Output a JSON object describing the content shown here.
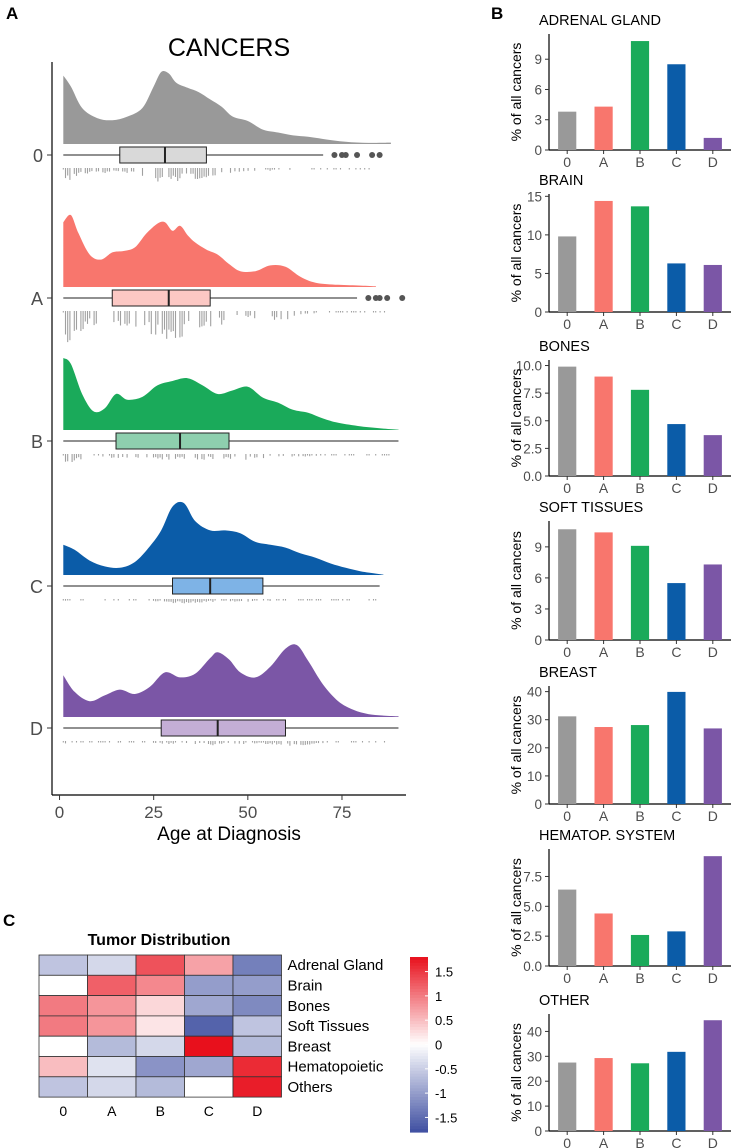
{
  "panels": {
    "a": "A",
    "b": "B",
    "c": "C"
  },
  "chart_data": [
    {
      "type": "raincloud",
      "title": "CANCERS",
      "xlabel": "Age at Diagnosis",
      "xlim": [
        -2,
        92
      ],
      "xticks": [
        0,
        25,
        50,
        75
      ],
      "groups": [
        {
          "name": "0",
          "color": "#999999",
          "box_fill": "#d9d9d9",
          "density": [
            [
              1,
              0.95
            ],
            [
              3,
              0.8
            ],
            [
              6,
              0.5
            ],
            [
              10,
              0.36
            ],
            [
              14,
              0.33
            ],
            [
              18,
              0.38
            ],
            [
              22,
              0.5
            ],
            [
              25,
              0.8
            ],
            [
              27,
              1.0
            ],
            [
              29,
              0.98
            ],
            [
              31,
              0.85
            ],
            [
              34,
              0.78
            ],
            [
              37,
              0.72
            ],
            [
              40,
              0.62
            ],
            [
              43,
              0.52
            ],
            [
              46,
              0.38
            ],
            [
              50,
              0.32
            ],
            [
              54,
              0.2
            ],
            [
              58,
              0.16
            ],
            [
              62,
              0.12
            ],
            [
              66,
              0.1
            ],
            [
              70,
              0.07
            ],
            [
              76,
              0.03
            ],
            [
              82,
              0.015
            ],
            [
              88,
              0.02
            ]
          ],
          "box": {
            "q1": 16,
            "median": 28,
            "q3": 39,
            "whisker_low": 1,
            "whisker_high": 70
          },
          "outliers": [
            73,
            75,
            76,
            79,
            83,
            85
          ]
        },
        {
          "name": "A",
          "color": "#F8766D",
          "box_fill": "#fcc8c4",
          "density": [
            [
              1,
              0.9
            ],
            [
              3,
              1.0
            ],
            [
              5,
              0.75
            ],
            [
              8,
              0.45
            ],
            [
              11,
              0.38
            ],
            [
              14,
              0.48
            ],
            [
              17,
              0.5
            ],
            [
              20,
              0.55
            ],
            [
              23,
              0.74
            ],
            [
              26,
              0.88
            ],
            [
              28,
              0.9
            ],
            [
              30,
              0.78
            ],
            [
              32,
              0.85
            ],
            [
              34,
              0.72
            ],
            [
              36,
              0.62
            ],
            [
              39,
              0.52
            ],
            [
              42,
              0.45
            ],
            [
              45,
              0.32
            ],
            [
              48,
              0.22
            ],
            [
              52,
              0.22
            ],
            [
              56,
              0.3
            ],
            [
              60,
              0.28
            ],
            [
              64,
              0.14
            ],
            [
              68,
              0.06
            ],
            [
              74,
              0.03
            ],
            [
              80,
              0.02
            ],
            [
              84,
              0.01
            ]
          ],
          "box": {
            "q1": 14,
            "median": 29,
            "q3": 40,
            "whisker_low": 1,
            "whisker_high": 79
          },
          "outliers": [
            82,
            84,
            85,
            87,
            91
          ]
        },
        {
          "name": "B",
          "color": "#1aaa5a",
          "box_fill": "#8ecfae",
          "density": [
            [
              1,
              1.0
            ],
            [
              3,
              0.92
            ],
            [
              6,
              0.5
            ],
            [
              9,
              0.26
            ],
            [
              12,
              0.3
            ],
            [
              15,
              0.5
            ],
            [
              18,
              0.42
            ],
            [
              22,
              0.46
            ],
            [
              26,
              0.62
            ],
            [
              30,
              0.68
            ],
            [
              34,
              0.72
            ],
            [
              38,
              0.62
            ],
            [
              42,
              0.5
            ],
            [
              46,
              0.55
            ],
            [
              50,
              0.6
            ],
            [
              54,
              0.45
            ],
            [
              58,
              0.38
            ],
            [
              62,
              0.28
            ],
            [
              66,
              0.24
            ],
            [
              70,
              0.16
            ],
            [
              74,
              0.1
            ],
            [
              80,
              0.05
            ],
            [
              86,
              0.02
            ],
            [
              90,
              0.005
            ]
          ],
          "box": {
            "q1": 15,
            "median": 32,
            "q3": 45,
            "whisker_low": 1,
            "whisker_high": 90
          },
          "outliers": []
        },
        {
          "name": "C",
          "color": "#0b5ca8",
          "box_fill": "#7eb3e6",
          "density": [
            [
              1,
              0.42
            ],
            [
              4,
              0.35
            ],
            [
              8,
              0.2
            ],
            [
              12,
              0.12
            ],
            [
              16,
              0.1
            ],
            [
              20,
              0.18
            ],
            [
              24,
              0.4
            ],
            [
              27,
              0.62
            ],
            [
              30,
              0.95
            ],
            [
              33,
              1.0
            ],
            [
              36,
              0.75
            ],
            [
              40,
              0.62
            ],
            [
              44,
              0.62
            ],
            [
              48,
              0.58
            ],
            [
              52,
              0.46
            ],
            [
              56,
              0.42
            ],
            [
              60,
              0.38
            ],
            [
              64,
              0.3
            ],
            [
              68,
              0.24
            ],
            [
              72,
              0.16
            ],
            [
              76,
              0.1
            ],
            [
              80,
              0.05
            ],
            [
              84,
              0.02
            ],
            [
              86,
              0.005
            ]
          ],
          "box": {
            "q1": 30,
            "median": 40,
            "q3": 54,
            "whisker_low": 1,
            "whisker_high": 85
          },
          "outliers": []
        },
        {
          "name": "D",
          "color": "#7b56a6",
          "box_fill": "#c4aed6",
          "density": [
            [
              1,
              0.58
            ],
            [
              4,
              0.35
            ],
            [
              8,
              0.22
            ],
            [
              12,
              0.3
            ],
            [
              16,
              0.38
            ],
            [
              20,
              0.32
            ],
            [
              24,
              0.42
            ],
            [
              28,
              0.62
            ],
            [
              32,
              0.55
            ],
            [
              36,
              0.6
            ],
            [
              40,
              0.82
            ],
            [
              42,
              0.9
            ],
            [
              45,
              0.8
            ],
            [
              48,
              0.62
            ],
            [
              52,
              0.55
            ],
            [
              56,
              0.7
            ],
            [
              60,
              0.95
            ],
            [
              63,
              1.0
            ],
            [
              66,
              0.78
            ],
            [
              70,
              0.45
            ],
            [
              74,
              0.22
            ],
            [
              78,
              0.1
            ],
            [
              82,
              0.04
            ],
            [
              86,
              0.02
            ],
            [
              90,
              0.01
            ]
          ],
          "box": {
            "q1": 27,
            "median": 42,
            "q3": 60,
            "whisker_low": 1,
            "whisker_high": 90
          },
          "outliers": []
        }
      ]
    },
    {
      "type": "bar",
      "title": "ADRENAL GLAND",
      "ylabel": "% of all cancers",
      "categories": [
        "0",
        "A",
        "B",
        "C",
        "D"
      ],
      "values": [
        3.8,
        4.3,
        10.8,
        8.5,
        1.2
      ],
      "ylim": [
        0,
        11.5
      ],
      "yticks": [
        0,
        3,
        6,
        9
      ],
      "colors": [
        "#999999",
        "#F8766D",
        "#1aaa5a",
        "#0b5ca8",
        "#7b56a6"
      ]
    },
    {
      "type": "bar",
      "title": "BRAIN",
      "ylabel": "% of all cancers",
      "categories": [
        "0",
        "A",
        "B",
        "C",
        "D"
      ],
      "values": [
        9.8,
        14.4,
        13.7,
        6.3,
        6.1
      ],
      "ylim": [
        0,
        15.3
      ],
      "yticks": [
        0,
        5,
        10,
        15
      ],
      "colors": [
        "#999999",
        "#F8766D",
        "#1aaa5a",
        "#0b5ca8",
        "#7b56a6"
      ]
    },
    {
      "type": "bar",
      "title": "BONES",
      "ylabel": "% of all cancers",
      "categories": [
        "0",
        "A",
        "B",
        "C",
        "D"
      ],
      "values": [
        9.9,
        9.0,
        7.8,
        4.7,
        3.7
      ],
      "ylim": [
        0,
        10.5
      ],
      "yticks": [
        0.0,
        2.5,
        5.0,
        7.5,
        10.0
      ],
      "tick_decimals": 1,
      "colors": [
        "#999999",
        "#F8766D",
        "#1aaa5a",
        "#0b5ca8",
        "#7b56a6"
      ]
    },
    {
      "type": "bar",
      "title": "SOFT TISSUES",
      "ylabel": "% of all cancers",
      "categories": [
        "0",
        "A",
        "B",
        "C",
        "D"
      ],
      "values": [
        10.7,
        10.4,
        9.1,
        5.5,
        7.3
      ],
      "ylim": [
        0,
        11.5
      ],
      "yticks": [
        0,
        3,
        6,
        9
      ],
      "colors": [
        "#999999",
        "#F8766D",
        "#1aaa5a",
        "#0b5ca8",
        "#7b56a6"
      ]
    },
    {
      "type": "bar",
      "title": "BREAST",
      "ylabel": "% of all cancers",
      "categories": [
        "0",
        "A",
        "B",
        "C",
        "D"
      ],
      "values": [
        31.2,
        27.4,
        28.1,
        39.9,
        26.9
      ],
      "ylim": [
        0,
        42
      ],
      "yticks": [
        0,
        10,
        20,
        30,
        40
      ],
      "colors": [
        "#999999",
        "#F8766D",
        "#1aaa5a",
        "#0b5ca8",
        "#7b56a6"
      ]
    },
    {
      "type": "bar",
      "title": "HEMATOP. SYSTEM",
      "ylabel": "% of all cancers",
      "categories": [
        "0",
        "A",
        "B",
        "C",
        "D"
      ],
      "values": [
        6.4,
        4.4,
        2.6,
        2.9,
        9.2
      ],
      "ylim": [
        0,
        9.8
      ],
      "yticks": [
        0.0,
        2.5,
        5.0,
        7.5
      ],
      "tick_decimals": 1,
      "colors": [
        "#999999",
        "#F8766D",
        "#1aaa5a",
        "#0b5ca8",
        "#7b56a6"
      ]
    },
    {
      "type": "bar",
      "title": "OTHER",
      "ylabel": "% of all cancers",
      "categories": [
        "0",
        "A",
        "B",
        "C",
        "D"
      ],
      "values": [
        27.5,
        29.3,
        27.2,
        31.8,
        44.5
      ],
      "ylim": [
        0,
        47
      ],
      "yticks": [
        0,
        10,
        20,
        30,
        40
      ],
      "colors": [
        "#999999",
        "#F8766D",
        "#1aaa5a",
        "#0b5ca8",
        "#7b56a6"
      ]
    },
    {
      "type": "heatmap",
      "title": "Tumor Distribution",
      "rows": [
        "Adrenal Gland",
        "Brain",
        "Bones",
        "Soft Tissues",
        "Breast",
        "Hematopoietic",
        "Others"
      ],
      "cols": [
        "0",
        "A",
        "B",
        "C",
        "D"
      ],
      "values": [
        [
          -0.6,
          -0.4,
          1.3,
          0.7,
          -1.3
        ],
        [
          0.0,
          1.2,
          0.9,
          -1.0,
          -1.0
        ],
        [
          1.0,
          0.8,
          0.3,
          -0.9,
          -1.2
        ],
        [
          1.0,
          0.8,
          0.2,
          -1.6,
          -0.6
        ],
        [
          0.0,
          -0.7,
          -0.4,
          1.8,
          -0.7
        ],
        [
          0.5,
          -0.3,
          -1.1,
          -0.9,
          1.6
        ],
        [
          -0.6,
          -0.4,
          -0.7,
          0.0,
          1.7
        ]
      ],
      "colorbar": {
        "range": [
          -1.8,
          1.8
        ],
        "ticks": [
          1.5,
          1,
          0.5,
          0,
          -0.5,
          -1,
          -1.5
        ],
        "low": "#3f4fa1",
        "mid": "#ffffff",
        "high": "#e8101c"
      }
    }
  ]
}
